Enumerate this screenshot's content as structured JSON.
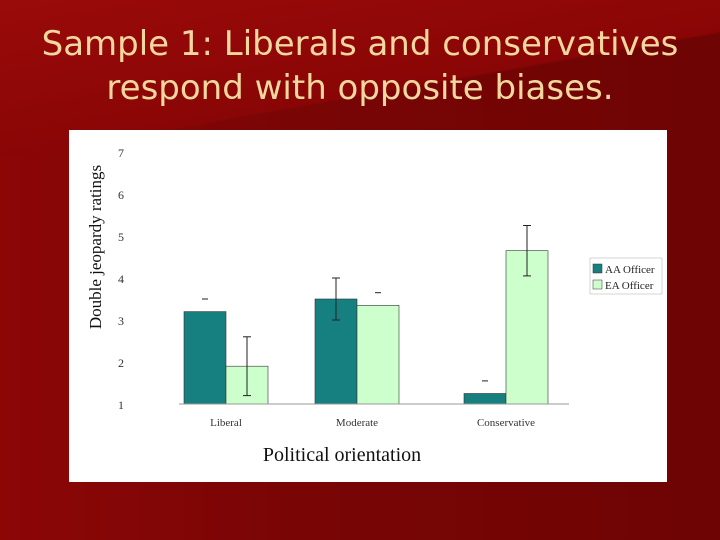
{
  "slide": {
    "title_line1": "Sample 1: Liberals and conservatives",
    "title_line2": "respond with opposite biases."
  },
  "colors": {
    "background": "#7a0505",
    "title": "#f3d7a0",
    "aa_officer": "#168080",
    "ea_officer": "#ccffcc"
  },
  "chart_data": {
    "type": "bar",
    "categories": [
      "Liberal",
      "Moderate",
      "Conservative"
    ],
    "series": [
      {
        "name": "AA Officer",
        "values": [
          3.2,
          3.5,
          1.25
        ],
        "error": [
          null,
          0.5,
          null
        ],
        "color": "#168080"
      },
      {
        "name": "EA Officer",
        "values": [
          1.9,
          3.35,
          4.65
        ],
        "error": [
          0.7,
          null,
          0.6
        ],
        "color": "#ccffcc"
      }
    ],
    "title": "",
    "xlabel": "Political orientation",
    "ylabel": "Double jeopardy ratings",
    "ylim": [
      1,
      7
    ],
    "yticks": [
      "1",
      "2",
      "3",
      "4",
      "5",
      "6",
      "7"
    ],
    "grid": false,
    "legend": "right"
  }
}
